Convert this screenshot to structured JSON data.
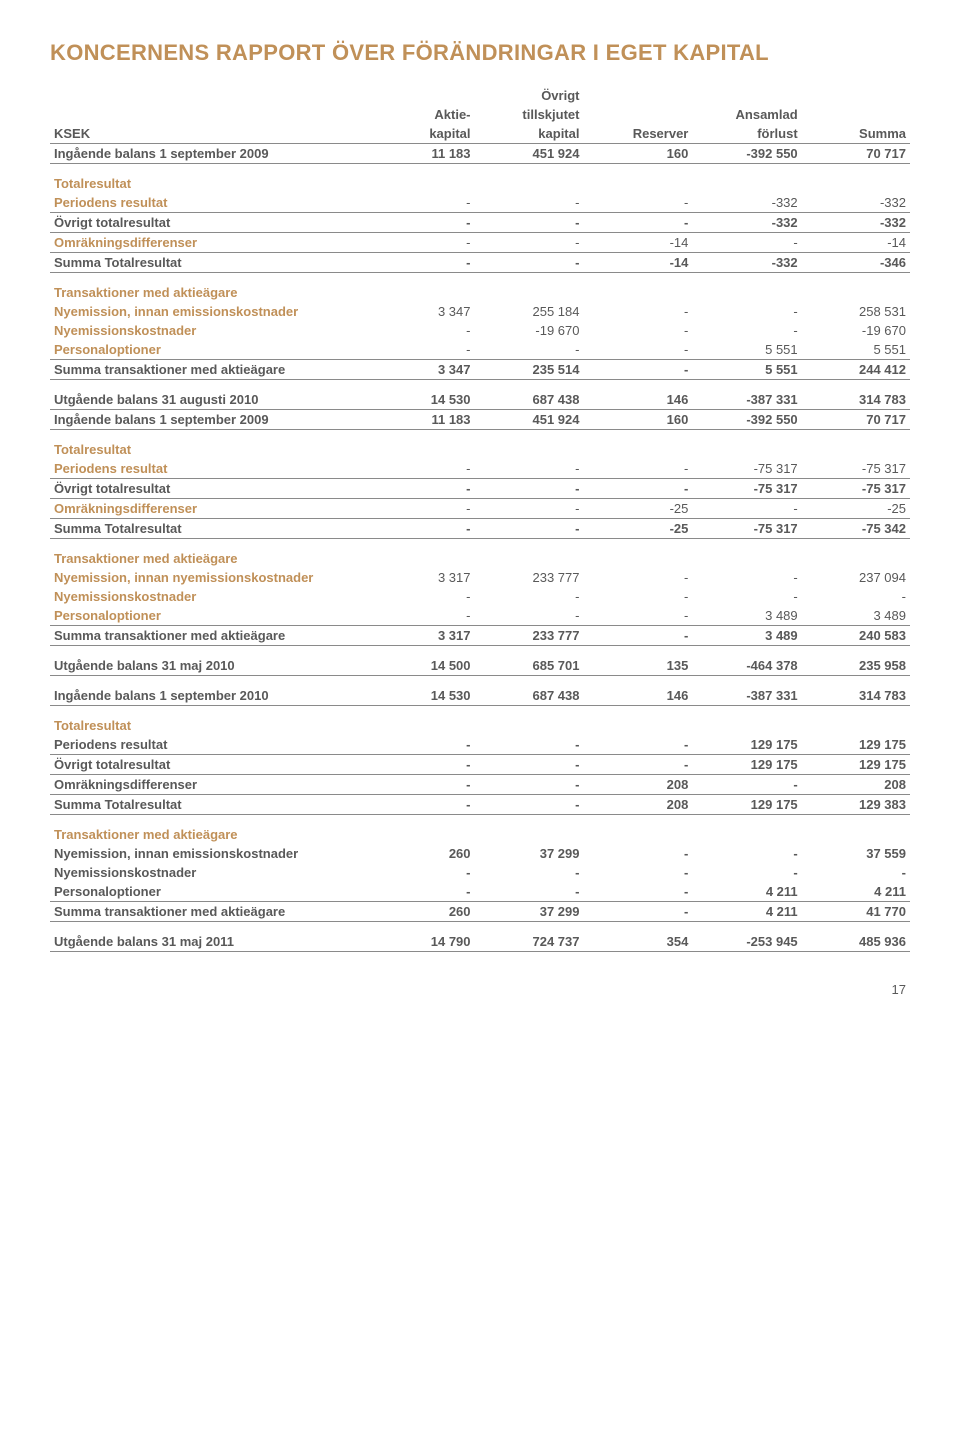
{
  "title": "KONCERNENS RAPPORT ÖVER FÖRÄNDRINGAR I EGET KAPITAL",
  "page_number": "17",
  "colors": {
    "accent": "#c09058",
    "text": "#595959",
    "border": "#8a8a8a",
    "background": "#ffffff"
  },
  "typography": {
    "title_fontsize": 22,
    "body_fontsize": 13,
    "font_family": "Arial"
  },
  "columns": {
    "c0": "KSEK",
    "c1a": "Aktie-",
    "c1b": "kapital",
    "c2a": "Övrigt",
    "c2b": "tillskjutet",
    "c2c": "kapital",
    "c3": "Reserver",
    "c4a": "Ansamlad",
    "c4b": "förlust",
    "c5": "Summa"
  },
  "rows": {
    "r1": {
      "label": "Ingående balans 1 september 2009",
      "c1": "11 183",
      "c2": "451 924",
      "c3": "160",
      "c4": "-392 550",
      "c5": "70 717"
    },
    "r2": {
      "label": "Totalresultat"
    },
    "r3": {
      "label": "Periodens resultat",
      "c1": "-",
      "c2": "-",
      "c3": "-",
      "c4": "-332",
      "c5": "-332"
    },
    "r4": {
      "label": "Övrigt totalresultat",
      "c1": "-",
      "c2": "-",
      "c3": "-",
      "c4": "-332",
      "c5": "-332"
    },
    "r5": {
      "label": "Omräkningsdifferenser",
      "c1": "-",
      "c2": "-",
      "c3": "-14",
      "c4": "-",
      "c5": "-14"
    },
    "r6": {
      "label": "Summa Totalresultat",
      "c1": "-",
      "c2": "-",
      "c3": "-14",
      "c4": "-332",
      "c5": "-346"
    },
    "r7": {
      "label": "Transaktioner med aktieägare"
    },
    "r8": {
      "label": "Nyemission, innan emissionskostnader",
      "c1": "3 347",
      "c2": "255 184",
      "c3": "-",
      "c4": "-",
      "c5": "258 531"
    },
    "r9": {
      "label": "Nyemissionskostnader",
      "c1": "-",
      "c2": "-19 670",
      "c3": "-",
      "c4": "-",
      "c5": "-19 670"
    },
    "r10": {
      "label": "Personaloptioner",
      "c1": "-",
      "c2": "-",
      "c3": "-",
      "c4": "5 551",
      "c5": "5 551"
    },
    "r11": {
      "label": "Summa transaktioner med aktieägare",
      "c1": "3 347",
      "c2": "235 514",
      "c3": "-",
      "c4": "5 551",
      "c5": "244 412"
    },
    "r12": {
      "label": "Utgående balans 31 augusti 2010",
      "c1": "14 530",
      "c2": "687 438",
      "c3": "146",
      "c4": "-387 331",
      "c5": "314 783"
    },
    "r13": {
      "label": "Ingående balans 1 september 2009",
      "c1": "11 183",
      "c2": "451 924",
      "c3": "160",
      "c4": "-392 550",
      "c5": "70 717"
    },
    "r14": {
      "label": "Totalresultat"
    },
    "r15": {
      "label": "Periodens resultat",
      "c1": "-",
      "c2": "-",
      "c3": "-",
      "c4": "-75 317",
      "c5": "-75 317"
    },
    "r16": {
      "label": "Övrigt totalresultat",
      "c1": "-",
      "c2": "-",
      "c3": "-",
      "c4": "-75 317",
      "c5": "-75 317"
    },
    "r17": {
      "label": "Omräkningsdifferenser",
      "c1": "-",
      "c2": "-",
      "c3": "-25",
      "c4": "-",
      "c5": "-25"
    },
    "r18": {
      "label": "Summa Totalresultat",
      "c1": "-",
      "c2": "-",
      "c3": "-25",
      "c4": "-75 317",
      "c5": "-75 342"
    },
    "r19": {
      "label": "Transaktioner med aktieägare"
    },
    "r20": {
      "label": "Nyemission, innan nyemissionskostnader",
      "c1": "3 317",
      "c2": "233 777",
      "c3": "-",
      "c4": "-",
      "c5": "237 094"
    },
    "r21": {
      "label": "Nyemissionskostnader",
      "c1": "-",
      "c2": "-",
      "c3": "-",
      "c4": "-",
      "c5": "-"
    },
    "r22": {
      "label": "Personaloptioner",
      "c1": "-",
      "c2": "-",
      "c3": "-",
      "c4": "3 489",
      "c5": "3 489"
    },
    "r23": {
      "label": "Summa transaktioner med aktieägare",
      "c1": "3 317",
      "c2": "233 777",
      "c3": "-",
      "c4": "3 489",
      "c5": "240 583"
    },
    "r24": {
      "label": "Utgående balans 31 maj 2010",
      "c1": "14 500",
      "c2": "685 701",
      "c3": "135",
      "c4": "-464 378",
      "c5": "235 958"
    },
    "r25": {
      "label": "Ingående balans 1 september 2010",
      "c1": "14 530",
      "c2": "687 438",
      "c3": "146",
      "c4": "-387 331",
      "c5": "314 783"
    },
    "r26": {
      "label": "Totalresultat"
    },
    "r27": {
      "label": "Periodens resultat",
      "c1": "-",
      "c2": "-",
      "c3": "-",
      "c4": "129 175",
      "c5": "129 175"
    },
    "r28": {
      "label": "Övrigt totalresultat",
      "c1": "-",
      "c2": "-",
      "c3": "-",
      "c4": "129 175",
      "c5": "129 175"
    },
    "r29": {
      "label": "Omräkningsdifferenser",
      "c1": "-",
      "c2": "-",
      "c3": "208",
      "c4": "-",
      "c5": "208"
    },
    "r30": {
      "label": "Summa Totalresultat",
      "c1": "-",
      "c2": "-",
      "c3": "208",
      "c4": "129 175",
      "c5": "129 383"
    },
    "r31": {
      "label": "Transaktioner med aktieägare"
    },
    "r32": {
      "label": "Nyemission, innan emissionskostnader",
      "c1": "260",
      "c2": "37 299",
      "c3": "-",
      "c4": "-",
      "c5": "37 559"
    },
    "r33": {
      "label": "Nyemissionskostnader",
      "c1": "-",
      "c2": "-",
      "c3": "-",
      "c4": "-",
      "c5": "-"
    },
    "r34": {
      "label": "Personaloptioner",
      "c1": "-",
      "c2": "-",
      "c3": "-",
      "c4": "4 211",
      "c5": "4 211"
    },
    "r35": {
      "label": "Summa transaktioner med aktieägare",
      "c1": "260",
      "c2": "37 299",
      "c3": "-",
      "c4": "4 211",
      "c5": "41 770"
    },
    "r36": {
      "label": "Utgående balans 31 maj 2011",
      "c1": "14 790",
      "c2": "724 737",
      "c3": "354",
      "c4": "-253 945",
      "c5": "485 936"
    }
  }
}
